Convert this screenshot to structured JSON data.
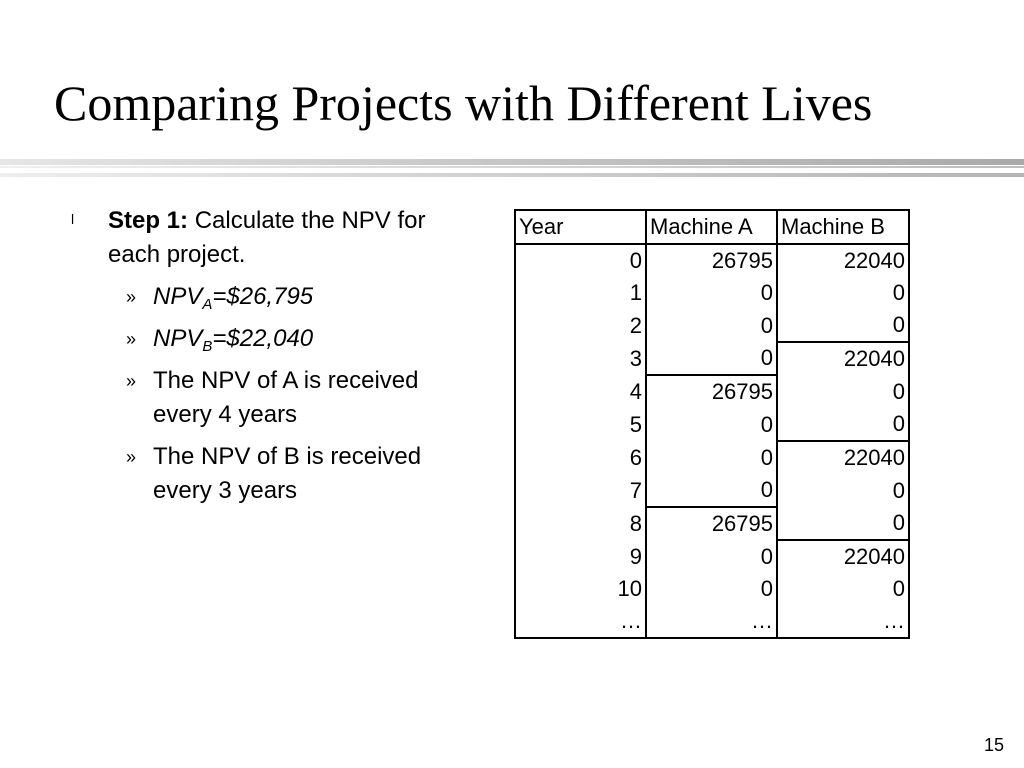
{
  "slide": {
    "title": "Comparing Projects with Different Lives",
    "page_number": "15"
  },
  "bullets": {
    "main_marker": "l",
    "step_label": "Step 1:",
    "step_text": "Calculate the NPV for each project.",
    "sub_marker": "»",
    "npv_a": {
      "prefix": "NPV",
      "subscript": "A",
      "value": "=$26,795"
    },
    "npv_b": {
      "prefix": "NPV",
      "subscript": "B",
      "value": "=$22,040"
    },
    "note_a": "The NPV of A is received every 4 years",
    "note_b": "The NPV of B is received every 3 years"
  },
  "table": {
    "headers": [
      "Year",
      "Machine A",
      "Machine B"
    ],
    "rows": [
      [
        "0",
        "26795",
        "22040"
      ],
      [
        "1",
        "0",
        "0"
      ],
      [
        "2",
        "0",
        "0"
      ],
      [
        "3",
        "0",
        "22040"
      ],
      [
        "4",
        "26795",
        "0"
      ],
      [
        "5",
        "0",
        "0"
      ],
      [
        "6",
        "0",
        "22040"
      ],
      [
        "7",
        "0",
        "0"
      ],
      [
        "8",
        "26795",
        "0"
      ],
      [
        "9",
        "0",
        "22040"
      ],
      [
        "10",
        "0",
        "0"
      ],
      [
        "…",
        "…",
        "…"
      ]
    ],
    "cycle_start_rows_a": [
      4,
      8
    ],
    "cycle_start_rows_b": [
      3,
      6,
      9
    ]
  }
}
